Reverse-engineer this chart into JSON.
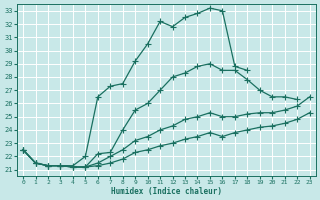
{
  "xlabel": "Humidex (Indice chaleur)",
  "ylabel": "",
  "xlim": [
    -0.5,
    23.5
  ],
  "ylim": [
    20.5,
    33.5
  ],
  "xticks": [
    0,
    1,
    2,
    3,
    4,
    5,
    6,
    7,
    8,
    9,
    10,
    11,
    12,
    13,
    14,
    15,
    16,
    17,
    18,
    19,
    20,
    21,
    22,
    23
  ],
  "yticks": [
    21,
    22,
    23,
    24,
    25,
    26,
    27,
    28,
    29,
    30,
    31,
    32,
    33
  ],
  "bg_color": "#c8e8e8",
  "line_color": "#1a7060",
  "grid_color": "#ffffff",
  "lines": [
    {
      "x": [
        0,
        1,
        2,
        3,
        4,
        5,
        6,
        7,
        8,
        9,
        10,
        11,
        12,
        13,
        14,
        15,
        16,
        17,
        18
      ],
      "y": [
        22.5,
        21.5,
        21.3,
        21.3,
        21.3,
        22.0,
        26.5,
        27.3,
        27.5,
        29.2,
        30.5,
        32.2,
        31.8,
        32.5,
        32.8,
        33.2,
        33.0,
        28.8,
        28.5
      ],
      "marker": "+",
      "ms": 4,
      "lw": 0.9
    },
    {
      "x": [
        0,
        1,
        2,
        3,
        4,
        5,
        6,
        7,
        8,
        9,
        10,
        11,
        12,
        13,
        14,
        15,
        16,
        17,
        18,
        19,
        20,
        21,
        22
      ],
      "y": [
        22.5,
        21.5,
        21.3,
        21.3,
        21.2,
        21.2,
        22.2,
        22.3,
        24.0,
        25.5,
        26.0,
        27.0,
        28.0,
        28.3,
        28.8,
        29.0,
        28.5,
        28.5,
        27.8,
        27.0,
        26.5,
        26.5,
        26.3
      ],
      "marker": "+",
      "ms": 4,
      "lw": 0.9
    },
    {
      "x": [
        0,
        1,
        2,
        3,
        4,
        5,
        6,
        7,
        8,
        9,
        10,
        11,
        12,
        13,
        14,
        15,
        16,
        17,
        18,
        19,
        20,
        21,
        22,
        23
      ],
      "y": [
        22.5,
        21.5,
        21.3,
        21.3,
        21.2,
        21.2,
        21.5,
        22.0,
        22.5,
        23.2,
        23.5,
        24.0,
        24.3,
        24.8,
        25.0,
        25.3,
        25.0,
        25.0,
        25.2,
        25.3,
        25.3,
        25.5,
        25.8,
        26.5
      ],
      "marker": "+",
      "ms": 4,
      "lw": 0.9
    },
    {
      "x": [
        0,
        1,
        2,
        3,
        4,
        5,
        6,
        7,
        8,
        9,
        10,
        11,
        12,
        13,
        14,
        15,
        16,
        17,
        18,
        19,
        20,
        21,
        22,
        23
      ],
      "y": [
        22.5,
        21.5,
        21.3,
        21.3,
        21.2,
        21.2,
        21.3,
        21.5,
        21.8,
        22.3,
        22.5,
        22.8,
        23.0,
        23.3,
        23.5,
        23.8,
        23.5,
        23.8,
        24.0,
        24.2,
        24.3,
        24.5,
        24.8,
        25.3
      ],
      "marker": "+",
      "ms": 4,
      "lw": 0.9
    }
  ]
}
